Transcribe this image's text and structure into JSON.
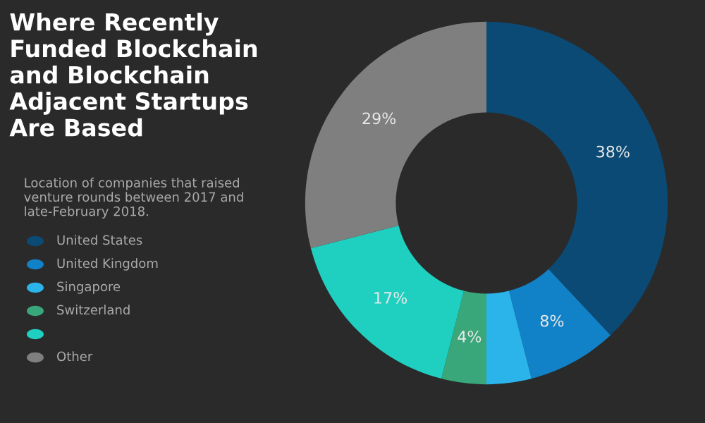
{
  "chart_data": {
    "type": "donut",
    "title": "Where Recently Funded Blockchain and Blockchain Adjacent Startups Are Based",
    "subtitle": "Location of companies that raised venture rounds between 2017 and late-February 2018.",
    "categories": [
      "United States",
      "United Kingdom",
      "Singapore",
      "Switzerland",
      null,
      "Other"
    ],
    "values": [
      38,
      8,
      4,
      4,
      17,
      29
    ],
    "colors": [
      "#0b4a75",
      "#1282c8",
      "#2bb4ea",
      "#3aa77a",
      "#1fd0c0",
      "#7f7f7f"
    ],
    "value_labels": [
      "38%",
      "8%",
      null,
      "4%",
      "17%",
      "29%"
    ],
    "legend": "bottom left"
  }
}
